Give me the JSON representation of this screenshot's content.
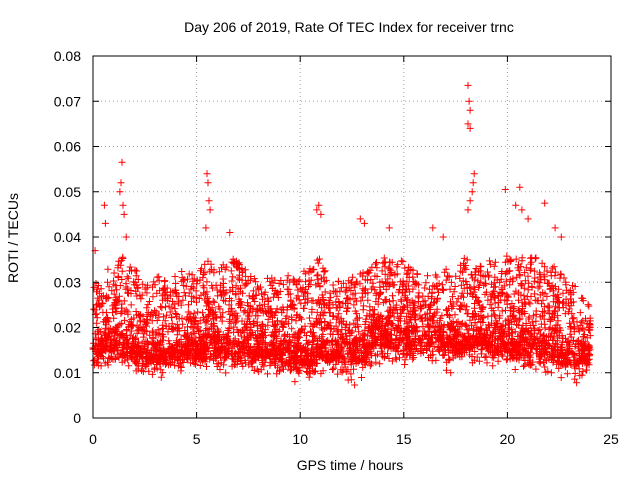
{
  "chart_data": {
    "type": "scatter",
    "title": "Day 206 of 2019, Rate Of TEC Index for receiver trnc",
    "xlabel": "GPS time / hours",
    "ylabel": "ROTI / TECUs",
    "xlim": [
      0,
      25
    ],
    "ylim": [
      0,
      0.08
    ],
    "x_ticks": [
      0,
      5,
      10,
      15,
      20,
      25
    ],
    "x_tick_labels": [
      "0",
      "5",
      "10",
      "15",
      "20",
      "25"
    ],
    "y_ticks": [
      0,
      0.01,
      0.02,
      0.03,
      0.04,
      0.05,
      0.06,
      0.07,
      0.08
    ],
    "y_tick_labels": [
      "0",
      "0.01",
      "0.02",
      "0.03",
      "0.04",
      "0.05",
      "0.06",
      "0.07",
      "0.08"
    ],
    "grid": true,
    "marker": "plus",
    "color": "#ff0000",
    "series": [
      {
        "name": "ROTI",
        "envelope": {
          "x": [
            0,
            0.5,
            1,
            1.5,
            2,
            2.5,
            3,
            3.5,
            4,
            4.5,
            5,
            5.5,
            6,
            6.5,
            7,
            7.5,
            8,
            8.5,
            9,
            9.5,
            10,
            10.5,
            11,
            11.5,
            12,
            12.5,
            13,
            13.5,
            14,
            14.5,
            15,
            15.5,
            16,
            16.5,
            17,
            17.5,
            18,
            18.5,
            19,
            19.5,
            20,
            20.5,
            21,
            21.5,
            22,
            22.5,
            23,
            23.5,
            24
          ],
          "low": [
            0.008,
            0.007,
            0.008,
            0.007,
            0.007,
            0.006,
            0.006,
            0.007,
            0.007,
            0.007,
            0.007,
            0.007,
            0.008,
            0.007,
            0.007,
            0.008,
            0.007,
            0.007,
            0.007,
            0.006,
            0.004,
            0.005,
            0.006,
            0.006,
            0.006,
            0.005,
            0.005,
            0.008,
            0.009,
            0.008,
            0.008,
            0.008,
            0.009,
            0.008,
            0.008,
            0.008,
            0.009,
            0.008,
            0.008,
            0.007,
            0.008,
            0.007,
            0.007,
            0.007,
            0.006,
            0.006,
            0.006,
            0.006,
            0.008
          ],
          "high": [
            0.03,
            0.032,
            0.034,
            0.036,
            0.033,
            0.031,
            0.032,
            0.031,
            0.032,
            0.033,
            0.031,
            0.036,
            0.032,
            0.036,
            0.035,
            0.032,
            0.03,
            0.031,
            0.031,
            0.032,
            0.032,
            0.034,
            0.036,
            0.031,
            0.03,
            0.032,
            0.033,
            0.034,
            0.036,
            0.035,
            0.035,
            0.033,
            0.032,
            0.032,
            0.033,
            0.032,
            0.036,
            0.033,
            0.037,
            0.034,
            0.036,
            0.035,
            0.037,
            0.036,
            0.034,
            0.033,
            0.032,
            0.027,
            0.026
          ],
          "center": [
            0.017,
            0.018,
            0.019,
            0.018,
            0.016,
            0.016,
            0.016,
            0.016,
            0.017,
            0.017,
            0.016,
            0.018,
            0.017,
            0.018,
            0.018,
            0.017,
            0.016,
            0.016,
            0.016,
            0.016,
            0.015,
            0.016,
            0.017,
            0.016,
            0.016,
            0.016,
            0.017,
            0.019,
            0.02,
            0.02,
            0.019,
            0.019,
            0.019,
            0.019,
            0.019,
            0.018,
            0.019,
            0.019,
            0.02,
            0.019,
            0.019,
            0.018,
            0.019,
            0.018,
            0.017,
            0.017,
            0.016,
            0.015,
            0.015
          ]
        },
        "spikes": [
          {
            "x": 0.1,
            "y": 0.037
          },
          {
            "x": 0.55,
            "y": 0.047
          },
          {
            "x": 0.6,
            "y": 0.043
          },
          {
            "x": 1.3,
            "y": 0.05
          },
          {
            "x": 1.35,
            "y": 0.052
          },
          {
            "x": 1.4,
            "y": 0.0565
          },
          {
            "x": 1.45,
            "y": 0.047
          },
          {
            "x": 1.5,
            "y": 0.045
          },
          {
            "x": 1.6,
            "y": 0.04
          },
          {
            "x": 5.5,
            "y": 0.054
          },
          {
            "x": 5.55,
            "y": 0.052
          },
          {
            "x": 5.6,
            "y": 0.048
          },
          {
            "x": 5.65,
            "y": 0.046
          },
          {
            "x": 5.45,
            "y": 0.042
          },
          {
            "x": 6.6,
            "y": 0.041
          },
          {
            "x": 10.8,
            "y": 0.046
          },
          {
            "x": 10.9,
            "y": 0.047
          },
          {
            "x": 11.0,
            "y": 0.045
          },
          {
            "x": 12.9,
            "y": 0.044
          },
          {
            "x": 13.1,
            "y": 0.043
          },
          {
            "x": 14.3,
            "y": 0.042
          },
          {
            "x": 16.4,
            "y": 0.042
          },
          {
            "x": 18.1,
            "y": 0.0735
          },
          {
            "x": 18.15,
            "y": 0.07
          },
          {
            "x": 18.2,
            "y": 0.068
          },
          {
            "x": 18.1,
            "y": 0.065
          },
          {
            "x": 18.2,
            "y": 0.064
          },
          {
            "x": 18.4,
            "y": 0.054
          },
          {
            "x": 18.35,
            "y": 0.052
          },
          {
            "x": 18.3,
            "y": 0.05
          },
          {
            "x": 18.2,
            "y": 0.048
          },
          {
            "x": 18.1,
            "y": 0.046
          },
          {
            "x": 19.9,
            "y": 0.0505
          },
          {
            "x": 20.4,
            "y": 0.047
          },
          {
            "x": 20.6,
            "y": 0.051
          },
          {
            "x": 20.7,
            "y": 0.046
          },
          {
            "x": 21.8,
            "y": 0.0475
          },
          {
            "x": 22.3,
            "y": 0.042
          },
          {
            "x": 22.6,
            "y": 0.04
          },
          {
            "x": 21.0,
            "y": 0.044
          },
          {
            "x": 16.9,
            "y": 0.04
          }
        ]
      }
    ]
  }
}
